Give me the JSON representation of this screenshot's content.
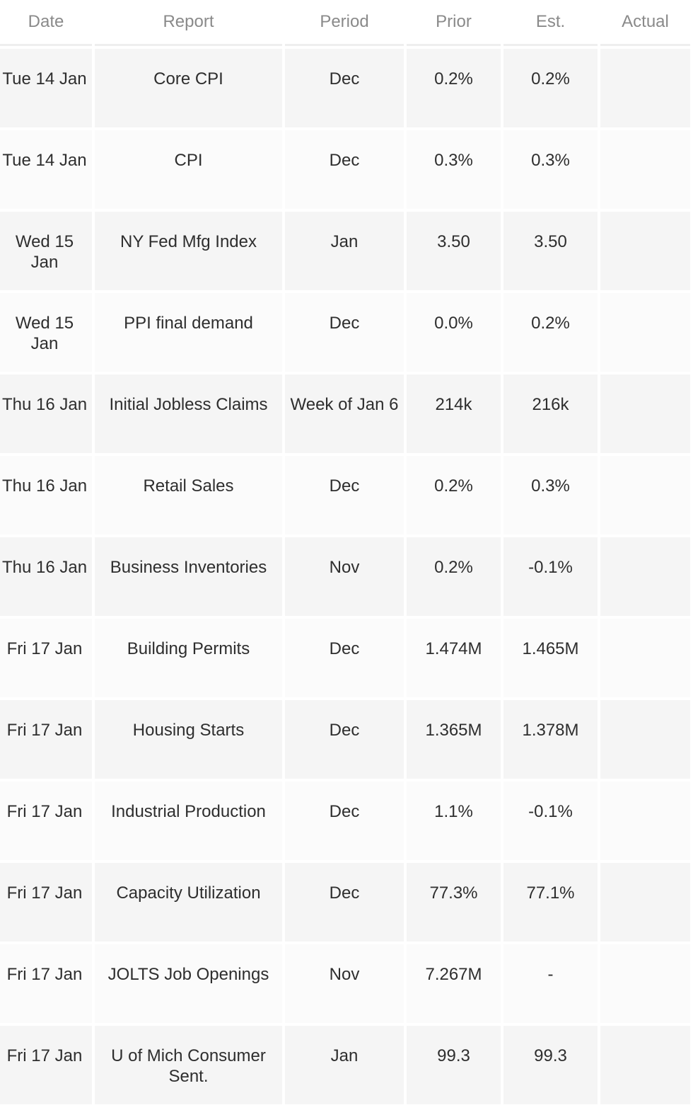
{
  "table": {
    "headers": {
      "date": "Date",
      "report": "Report",
      "period": "Period",
      "prior": "Prior",
      "est": "Est.",
      "actual": "Actual"
    },
    "rows": [
      {
        "date": "Tue 14 Jan",
        "report": "Core CPI",
        "period": "Dec",
        "prior": "0.2%",
        "est": "0.2%",
        "actual": ""
      },
      {
        "date": "Tue 14 Jan",
        "report": "CPI",
        "period": "Dec",
        "prior": "0.3%",
        "est": "0.3%",
        "actual": ""
      },
      {
        "date": "Wed 15 Jan",
        "report": "NY Fed Mfg Index",
        "period": "Jan",
        "prior": "3.50",
        "est": "3.50",
        "actual": ""
      },
      {
        "date": "Wed 15 Jan",
        "report": "PPI final demand",
        "period": "Dec",
        "prior": "0.0%",
        "est": "0.2%",
        "actual": ""
      },
      {
        "date": "Thu 16 Jan",
        "report": "Initial Jobless Claims",
        "period": "Week of Jan 6",
        "prior": "214k",
        "est": "216k",
        "actual": ""
      },
      {
        "date": "Thu 16 Jan",
        "report": "Retail Sales",
        "period": "Dec",
        "prior": "0.2%",
        "est": "0.3%",
        "actual": ""
      },
      {
        "date": "Thu 16 Jan",
        "report": "Business Inventories",
        "period": "Nov",
        "prior": "0.2%",
        "est": "-0.1%",
        "actual": ""
      },
      {
        "date": "Fri 17 Jan",
        "report": "Building Permits",
        "period": "Dec",
        "prior": "1.474M",
        "est": "1.465M",
        "actual": ""
      },
      {
        "date": "Fri 17 Jan",
        "report": "Housing Starts",
        "period": "Dec",
        "prior": "1.365M",
        "est": "1.378M",
        "actual": ""
      },
      {
        "date": "Fri 17 Jan",
        "report": "Industrial Production",
        "period": "Dec",
        "prior": "1.1%",
        "est": "-0.1%",
        "actual": ""
      },
      {
        "date": "Fri 17 Jan",
        "report": "Capacity Utilization",
        "period": "Dec",
        "prior": "77.3%",
        "est": "77.1%",
        "actual": ""
      },
      {
        "date": "Fri 17 Jan",
        "report": "JOLTS Job Openings",
        "period": "Nov",
        "prior": "7.267M",
        "est": "-",
        "actual": ""
      },
      {
        "date": "Fri 17 Jan",
        "report": "U of Mich Consumer Sent.",
        "period": "Jan",
        "prior": "99.3",
        "est": "99.3",
        "actual": ""
      }
    ]
  }
}
